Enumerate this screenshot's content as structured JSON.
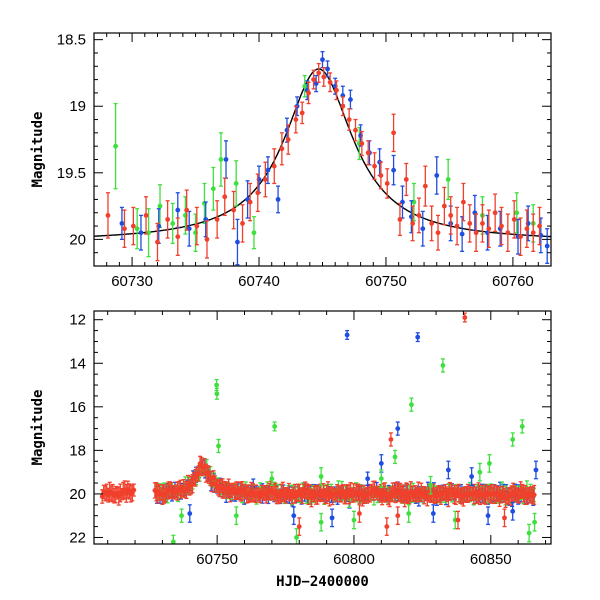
{
  "colors": {
    "blue": "#1f4fe0",
    "green": "#3ee03e",
    "red": "#f0402c",
    "model": "#000000"
  },
  "chart_data": [
    {
      "type": "scatter",
      "title": "",
      "xlabel": "",
      "ylabel": "Magnitude",
      "xlim": [
        60727,
        60763
      ],
      "ylim": [
        20.2,
        18.45
      ],
      "y_inverted": true,
      "xticks": [
        60730,
        60740,
        60750,
        60760
      ],
      "xtick_labels": [
        "60730",
        "60740",
        "60750",
        "60760"
      ],
      "yticks": [
        18.5,
        19,
        19.5,
        20
      ],
      "ytick_labels": [
        "18.5",
        "19",
        "19.5",
        "20"
      ],
      "model_curve": {
        "peak_x": 60744.7,
        "peak_mag": 18.72,
        "base_mag": 20.02,
        "width": 3.3
      },
      "series": [
        {
          "color": "green",
          "points": [
            [
              60728.7,
              19.3,
              0.32
            ],
            [
              60730.4,
              19.92,
              0.15
            ],
            [
              60731.3,
              19.95,
              0.18
            ],
            [
              60732.2,
              19.75,
              0.16
            ],
            [
              60733.2,
              19.88,
              0.15
            ],
            [
              60734.2,
              19.82,
              0.14
            ],
            [
              60735.0,
              19.95,
              0.14
            ],
            [
              60735.7,
              19.73,
              0.15
            ],
            [
              60736.4,
              19.62,
              0.16
            ],
            [
              60737.0,
              19.4,
              0.2
            ],
            [
              60738.2,
              19.58,
              0.17
            ],
            [
              60739.6,
              19.95,
              0.12
            ],
            [
              60743.6,
              18.85,
              0.08
            ],
            [
              60747.9,
              19.28,
              0.12
            ],
            [
              60752.2,
              19.72,
              0.14
            ],
            [
              60754.9,
              19.55,
              0.15
            ],
            [
              60757.6,
              19.82,
              0.14
            ],
            [
              60760.3,
              19.8,
              0.15
            ],
            [
              60761.6,
              19.88,
              0.14
            ]
          ]
        },
        {
          "color": "blue",
          "points": [
            [
              60729.2,
              19.88,
              0.12
            ],
            [
              60730.7,
              19.95,
              0.13
            ],
            [
              60732.1,
              19.9,
              0.13
            ],
            [
              60733.6,
              19.78,
              0.13
            ],
            [
              60734.5,
              19.92,
              0.13
            ],
            [
              60735.8,
              19.85,
              0.13
            ],
            [
              60737.4,
              19.4,
              0.14
            ],
            [
              60738.3,
              20.02,
              0.17
            ],
            [
              60739.1,
              19.7,
              0.14
            ],
            [
              60740.0,
              19.55,
              0.1
            ],
            [
              60740.7,
              19.48,
              0.1
            ],
            [
              60741.5,
              19.7,
              0.1
            ],
            [
              60742.2,
              19.18,
              0.09
            ],
            [
              60743.0,
              19.0,
              0.07
            ],
            [
              60743.8,
              18.88,
              0.07
            ],
            [
              60744.5,
              18.83,
              0.06
            ],
            [
              60745.0,
              18.65,
              0.06
            ],
            [
              60745.4,
              18.72,
              0.06
            ],
            [
              60746.0,
              18.85,
              0.06
            ],
            [
              60746.6,
              18.92,
              0.07
            ],
            [
              60747.2,
              18.95,
              0.07
            ],
            [
              60748.0,
              19.22,
              0.08
            ],
            [
              60748.7,
              19.35,
              0.09
            ],
            [
              60749.5,
              19.42,
              0.1
            ],
            [
              60750.6,
              19.48,
              0.11
            ],
            [
              60751.3,
              19.72,
              0.12
            ],
            [
              60752.0,
              19.83,
              0.12
            ],
            [
              60752.9,
              19.92,
              0.13
            ],
            [
              60754.0,
              19.52,
              0.14
            ],
            [
              60755.1,
              19.88,
              0.13
            ],
            [
              60756.0,
              19.96,
              0.13
            ],
            [
              60757.0,
              19.8,
              0.13
            ],
            [
              60758.0,
              19.95,
              0.13
            ],
            [
              60759.0,
              19.92,
              0.13
            ],
            [
              60760.4,
              19.98,
              0.13
            ],
            [
              60761.2,
              19.88,
              0.13
            ],
            [
              60762.2,
              19.97,
              0.13
            ],
            [
              60762.7,
              20.05,
              0.13
            ]
          ]
        },
        {
          "color": "red",
          "points": [
            [
              60728.1,
              19.82,
              0.17
            ],
            [
              60729.4,
              19.92,
              0.14
            ],
            [
              60730.1,
              19.9,
              0.14
            ],
            [
              60731.1,
              19.82,
              0.14
            ],
            [
              60732.0,
              20.02,
              0.14
            ],
            [
              60732.8,
              19.85,
              0.14
            ],
            [
              60733.6,
              19.98,
              0.14
            ],
            [
              60734.3,
              19.78,
              0.15
            ],
            [
              60735.1,
              19.9,
              0.14
            ],
            [
              60735.9,
              20.0,
              0.14
            ],
            [
              60736.7,
              19.85,
              0.14
            ],
            [
              60737.3,
              19.68,
              0.14
            ],
            [
              60738.0,
              19.78,
              0.14
            ],
            [
              60738.7,
              19.88,
              0.14
            ],
            [
              60739.3,
              19.72,
              0.14
            ],
            [
              60739.9,
              19.65,
              0.14
            ],
            [
              60740.5,
              19.55,
              0.13
            ],
            [
              60741.2,
              19.45,
              0.13
            ],
            [
              60741.8,
              19.32,
              0.12
            ],
            [
              60742.3,
              19.25,
              0.11
            ],
            [
              60742.9,
              19.1,
              0.1
            ],
            [
              60743.4,
              19.05,
              0.08
            ],
            [
              60743.9,
              18.9,
              0.08
            ],
            [
              60744.3,
              18.8,
              0.07
            ],
            [
              60744.7,
              18.75,
              0.07
            ],
            [
              60745.1,
              18.78,
              0.07
            ],
            [
              60745.6,
              18.82,
              0.07
            ],
            [
              60746.1,
              18.88,
              0.07
            ],
            [
              60746.6,
              19.0,
              0.07
            ],
            [
              60747.1,
              19.1,
              0.08
            ],
            [
              60747.6,
              19.18,
              0.08
            ],
            [
              60748.1,
              19.28,
              0.09
            ],
            [
              60748.6,
              19.35,
              0.09
            ],
            [
              60749.1,
              19.45,
              0.1
            ],
            [
              60749.6,
              19.52,
              0.1
            ],
            [
              60750.1,
              19.58,
              0.11
            ],
            [
              60750.6,
              19.2,
              0.14
            ],
            [
              60751.1,
              19.85,
              0.12
            ],
            [
              60751.6,
              19.55,
              0.12
            ],
            [
              60752.1,
              19.88,
              0.13
            ],
            [
              60752.6,
              19.82,
              0.13
            ],
            [
              60753.1,
              19.6,
              0.15
            ],
            [
              60753.6,
              19.88,
              0.13
            ],
            [
              60754.1,
              19.95,
              0.13
            ],
            [
              60754.6,
              19.75,
              0.14
            ],
            [
              60755.1,
              19.82,
              0.14
            ],
            [
              60755.6,
              19.9,
              0.14
            ],
            [
              60756.1,
              19.72,
              0.14
            ],
            [
              60756.6,
              19.88,
              0.14
            ],
            [
              60757.1,
              19.95,
              0.14
            ],
            [
              60757.6,
              19.88,
              0.14
            ],
            [
              60758.1,
              19.92,
              0.14
            ],
            [
              60758.6,
              19.8,
              0.14
            ],
            [
              60759.1,
              19.9,
              0.14
            ],
            [
              60759.6,
              19.95,
              0.14
            ],
            [
              60760.1,
              19.85,
              0.14
            ],
            [
              60760.6,
              19.98,
              0.14
            ],
            [
              60761.1,
              19.92,
              0.14
            ],
            [
              60761.6,
              19.95,
              0.14
            ],
            [
              60762.1,
              19.9,
              0.14
            ]
          ]
        }
      ]
    },
    {
      "type": "scatter",
      "title": "",
      "xlabel": "HJD−2400000",
      "ylabel": "Magnitude",
      "xlim": [
        60705,
        60872
      ],
      "ylim": [
        22.3,
        11.6
      ],
      "y_inverted": true,
      "xticks": [
        60750,
        60800,
        60850
      ],
      "xtick_labels": [
        "60750",
        "60800",
        "60850"
      ],
      "yticks": [
        12,
        14,
        16,
        18,
        20,
        22
      ],
      "ytick_labels": [
        "12",
        "14",
        "16",
        "18",
        "20",
        "22"
      ],
      "baseline_mag": 20.0,
      "event_peak": {
        "x": 60744.7,
        "mag": 18.72,
        "width": 3.3
      },
      "series": [
        {
          "color": "blue",
          "outliers": [
            [
              60797.5,
              12.7,
              0.2
            ],
            [
              60823.3,
              12.8,
              0.2
            ],
            [
              60816.0,
              17.0,
              0.3
            ],
            [
              60810.0,
              18.6,
              0.4
            ],
            [
              60834.5,
              18.9,
              0.4
            ],
            [
              60843.0,
              19.2,
              0.4
            ],
            [
              60866.5,
              18.9,
              0.4
            ],
            [
              60740.0,
              20.9,
              0.4
            ],
            [
              60778.0,
              21.0,
              0.4
            ],
            [
              60792.0,
              21.1,
              0.4
            ],
            [
              60805.0,
              19.3,
              0.3
            ],
            [
              60829.0,
              20.9,
              0.4
            ],
            [
              60849.0,
              21.0,
              0.4
            ],
            [
              60858.0,
              20.8,
              0.4
            ]
          ]
        },
        {
          "color": "green",
          "outliers": [
            [
              60749.8,
              15.0,
              0.25
            ],
            [
              60749.9,
              15.4,
              0.25
            ],
            [
              60750.5,
              17.8,
              0.3
            ],
            [
              60771.0,
              16.9,
              0.2
            ],
            [
              60815.0,
              18.3,
              0.3
            ],
            [
              60821.0,
              15.9,
              0.3
            ],
            [
              60832.5,
              14.1,
              0.3
            ],
            [
              60849.5,
              18.6,
              0.4
            ],
            [
              60861.5,
              16.9,
              0.3
            ],
            [
              60858.0,
              17.5,
              0.3
            ],
            [
              60734.0,
              22.2,
              0.3
            ],
            [
              60737.0,
              21.0,
              0.3
            ],
            [
              60757.0,
              21.0,
              0.4
            ],
            [
              60779.0,
              22.0,
              0.4
            ],
            [
              60788.0,
              21.3,
              0.4
            ],
            [
              60800.0,
              21.2,
              0.4
            ],
            [
              60820.0,
              20.9,
              0.4
            ],
            [
              60828.0,
              19.6,
              0.4
            ],
            [
              60837.0,
              21.2,
              0.4
            ],
            [
              60864.0,
              21.8,
              0.4
            ],
            [
              60866.0,
              21.3,
              0.4
            ],
            [
              60788.0,
              19.2,
              0.4
            ],
            [
              60810.0,
              19.3,
              0.4
            ],
            [
              60846.0,
              19.0,
              0.4
            ],
            [
              60770.0,
              19.3,
              0.3
            ]
          ]
        },
        {
          "color": "red",
          "outliers": [
            [
              60840.5,
              11.9,
              0.2
            ],
            [
              60813.5,
              17.5,
              0.3
            ],
            [
              60802.0,
              20.9,
              0.4
            ],
            [
              60812.0,
              21.5,
              0.4
            ],
            [
              60816.0,
              21.0,
              0.4
            ],
            [
              60838.0,
              21.2,
              0.4
            ],
            [
              60855.0,
              21.1,
              0.4
            ],
            [
              60780.0,
              21.5,
              0.4
            ]
          ]
        }
      ]
    }
  ]
}
